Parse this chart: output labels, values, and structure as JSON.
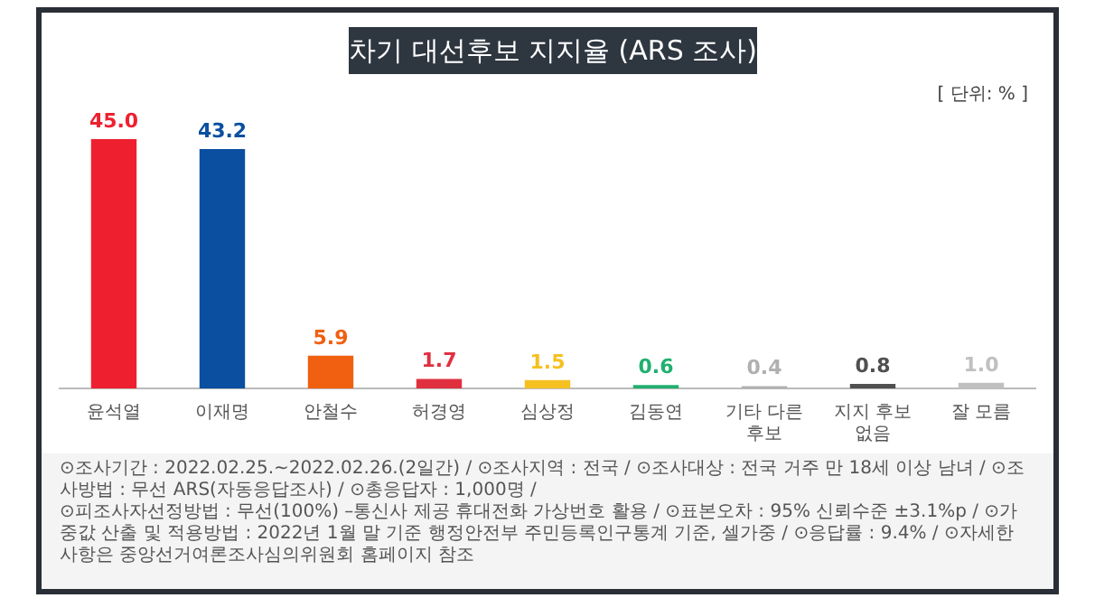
{
  "chart_data": {
    "type": "bar",
    "title": "차기 대선후보 지지율 (ARS 조사)",
    "categories": [
      "윤석열",
      "이재명",
      "안철수",
      "허경영",
      "심상정",
      "김동연",
      "기타 다른 후보",
      "지지 후보 없음",
      "잘 모름"
    ],
    "values": [
      45.0,
      43.2,
      5.9,
      1.7,
      1.5,
      0.6,
      0.4,
      0.8,
      1.0
    ],
    "colors": [
      "#ee2030",
      "#0a4fa0",
      "#f06010",
      "#e03040",
      "#f5c020",
      "#20b070",
      "#b0b0b0",
      "#505050",
      "#c0c0c0"
    ],
    "value_labels": [
      "45.0",
      "43.2",
      "5.9",
      "1.7",
      "1.5",
      "0.6",
      "0.4",
      "0.8",
      "1.0"
    ],
    "grid": false,
    "legend": false,
    "annotations": [
      "[ 단위: % ]",
      "⊙조사기간 : 2022.02.25.~2022.02.26.(2일간) / ⊙조사지역 : 전국 / ⊙조사대상 : 전국 거주 만 18세 이상 남녀 / ⊙조사방법 : 무선 ARS(자동응답조사) / ⊙총응답자 : 1,000명 /",
      "⊙피조사자선정방법 : 무선(100%) –통신사 제공 휴대전화 가상번호 활용 / ⊙표본오차 : 95% 신뢰수준 ±3.1%p / ⊙가중값 산출 및 적용방법 : 2022년 1월 말 기준 행정안전부 주민등록인구통계 기준, 셀가중 / ⊙응답률 : 9.4% / ⊙자세한 사항은 중앙선거여론조사심의위원회 홈페이지 참조"
    ]
  }
}
